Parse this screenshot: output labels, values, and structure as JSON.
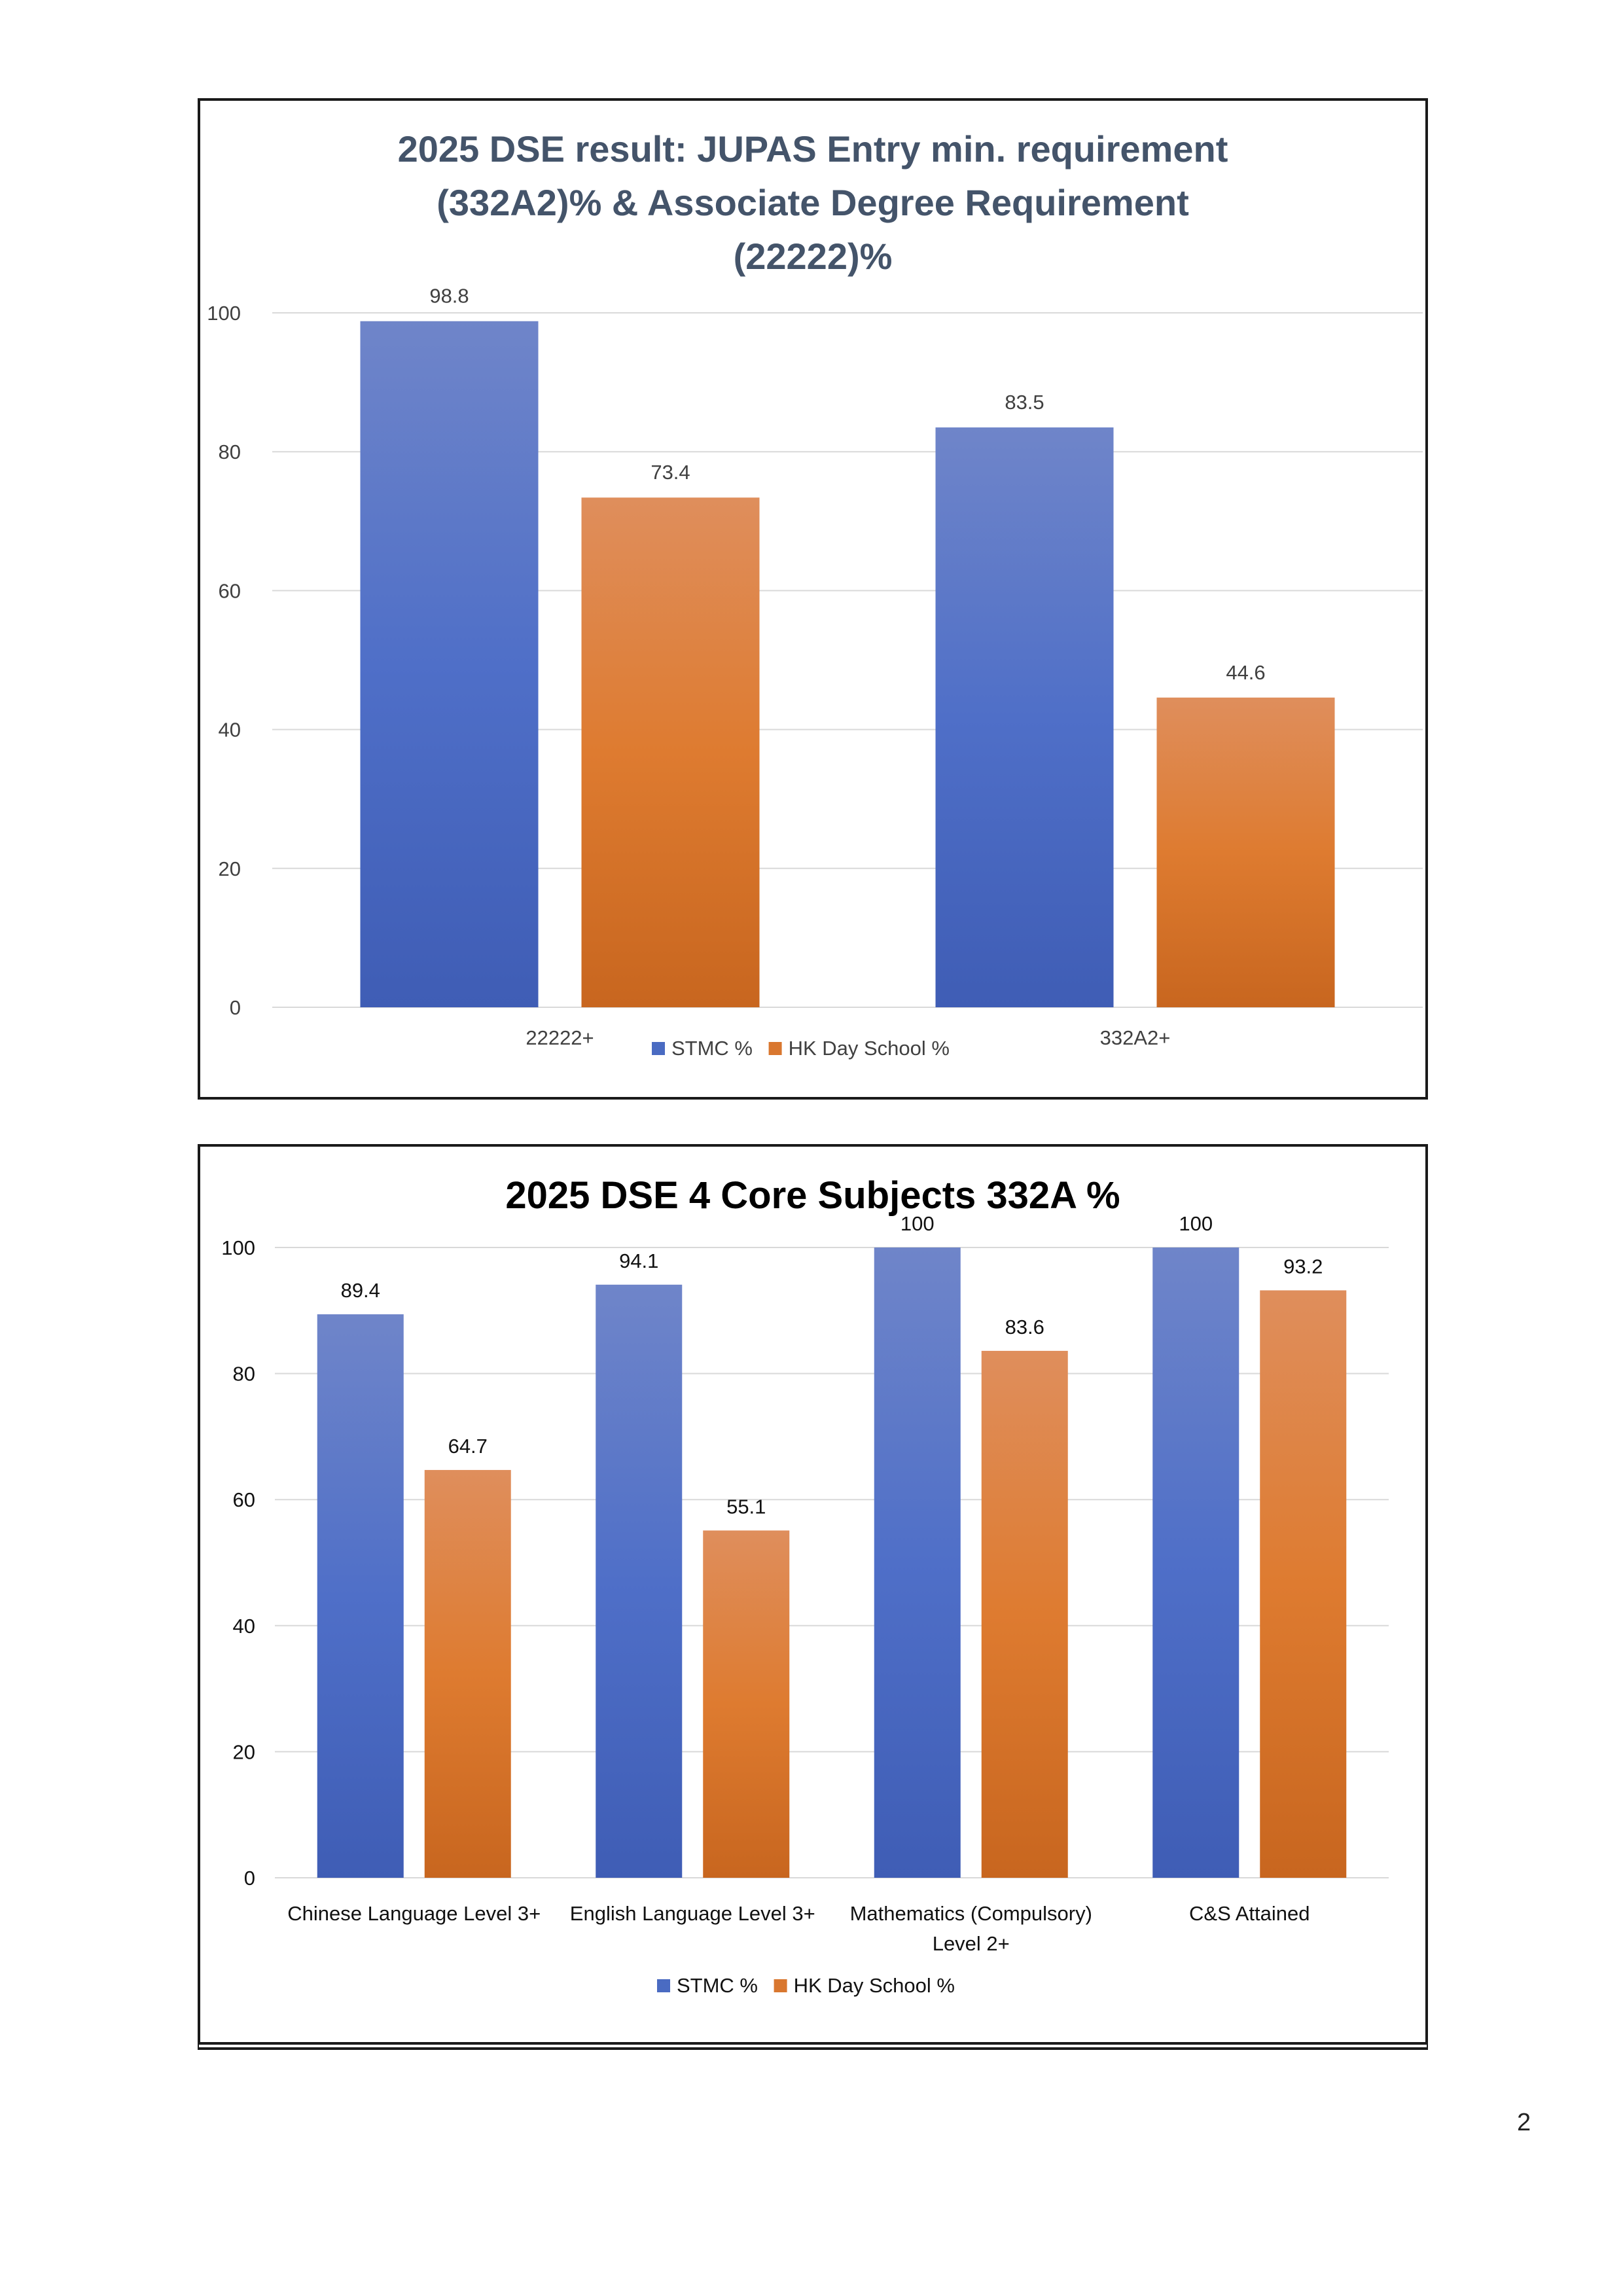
{
  "page_number": "2",
  "colors": {
    "stmc_top": "#6f85c9",
    "stmc_bottom": "#3f5db5",
    "hk_top": "#df8e5c",
    "hk_bottom": "#c8661f",
    "stmc_legend": "#4a6bc2",
    "hk_legend": "#d9772f",
    "title1": "#44546a",
    "title2": "#000000",
    "grid": "#d9d9d9"
  },
  "chart_data": [
    {
      "type": "bar",
      "title_lines": [
        "2025 DSE result: JUPAS Entry min. requirement",
        "(332A2)%  & Associate Degree Requirement",
        "(22222)%"
      ],
      "categories": [
        "22222+",
        "332A2+"
      ],
      "series": [
        {
          "name": "STMC %",
          "values": [
            98.8,
            83.5
          ]
        },
        {
          "name": "HK Day School %",
          "values": [
            73.4,
            44.6
          ]
        }
      ],
      "ylim": [
        0,
        100
      ],
      "yticks": [
        "0",
        "20",
        "40",
        "60",
        "80",
        "100"
      ],
      "grid": true,
      "legend": "bottom"
    },
    {
      "type": "bar",
      "title_lines": [
        "2025 DSE 4 Core Subjects 332A  %"
      ],
      "categories": [
        [
          "Chinese Language Level 3+"
        ],
        [
          "English Language Level 3+"
        ],
        [
          "Mathematics (Compulsory)",
          "Level 2+"
        ],
        [
          "C&S Attained"
        ]
      ],
      "series": [
        {
          "name": "STMC %",
          "values": [
            89.4,
            94.1,
            100,
            100
          ]
        },
        {
          "name": "HK Day School %",
          "values": [
            64.7,
            55.1,
            83.6,
            93.2
          ]
        }
      ],
      "ylim": [
        0,
        100
      ],
      "yticks": [
        "0",
        "20",
        "40",
        "60",
        "80",
        "100"
      ],
      "grid": true,
      "legend": "bottom"
    }
  ]
}
